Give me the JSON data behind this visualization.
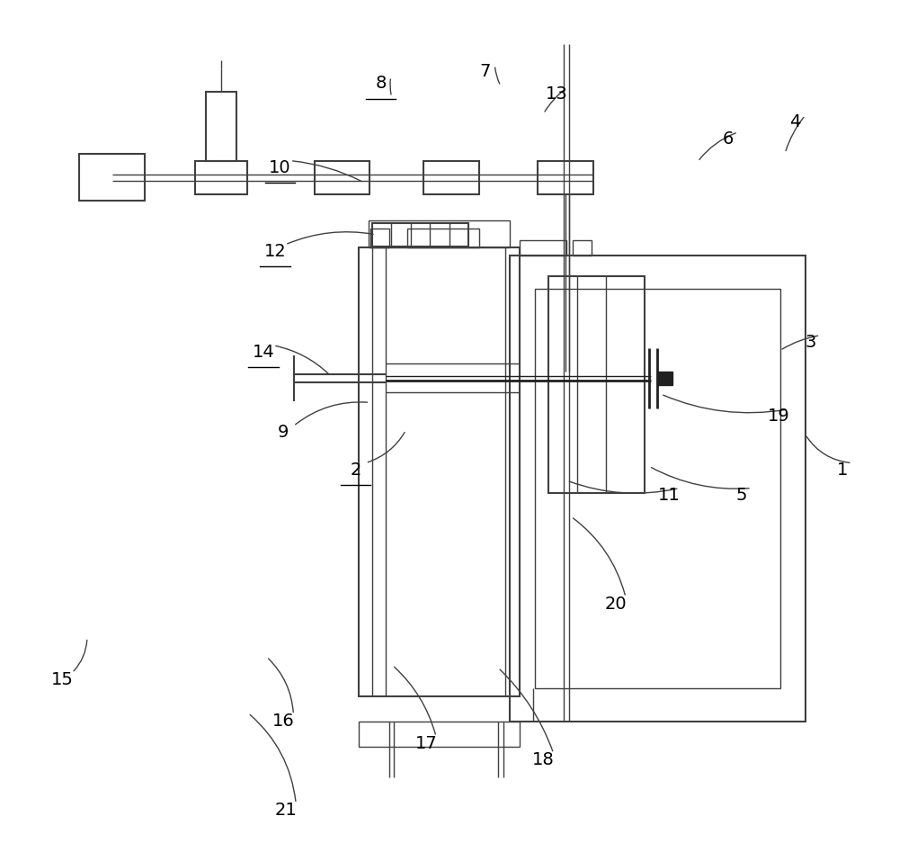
{
  "bg_color": "#ffffff",
  "line_color": "#404040",
  "dark_color": "#202020",
  "label_color": "#000000",
  "fig_width": 10.0,
  "fig_height": 9.47,
  "underlined_labels": [
    "2",
    "8",
    "10",
    "12",
    "14"
  ],
  "font_size": 14,
  "lw_main": 1.5,
  "lw_thin": 1.0,
  "lw_thick": 2.0
}
